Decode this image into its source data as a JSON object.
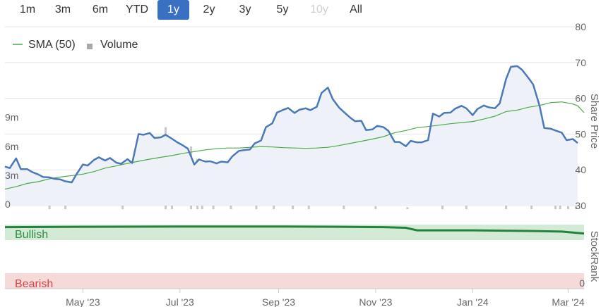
{
  "range_buttons": [
    {
      "label": "1m",
      "state": "normal"
    },
    {
      "label": "3m",
      "state": "normal"
    },
    {
      "label": "6m",
      "state": "normal"
    },
    {
      "label": "YTD",
      "state": "normal"
    },
    {
      "label": "1y",
      "state": "active"
    },
    {
      "label": "2y",
      "state": "normal"
    },
    {
      "label": "3y",
      "state": "normal"
    },
    {
      "label": "5y",
      "state": "normal"
    },
    {
      "label": "10y",
      "state": "disabled"
    },
    {
      "label": "All",
      "state": "normal"
    }
  ],
  "colors": {
    "accent": "#3a70c1",
    "price_line": "#4a78b8",
    "price_fill": "#eef2f8",
    "sma_line": "#4aaa4a",
    "volume_bar": "#c8c8c8",
    "stockrank_line": "#23833d",
    "bullish_band": "#d3ead6",
    "bullish_text": "#2e8b3f",
    "bearish_band": "#f6dada",
    "bearish_text": "#d34545",
    "grid": "#e6e6e6",
    "axis_text": "#666666"
  },
  "legend": [
    {
      "label": "SMA (50)",
      "marker": "line",
      "color": "#4aaa4a"
    },
    {
      "label": "Volume",
      "marker": "square",
      "color": "#a8a8a8"
    }
  ],
  "chart_data": {
    "type": "line",
    "x_labels": [
      "May '23",
      "Jul '23",
      "Sep '23",
      "Nov '23",
      "Jan '24",
      "Mar '24"
    ],
    "x": [
      "2023-03-13",
      "2023-03-16",
      "2023-03-20",
      "2023-03-23",
      "2023-03-27",
      "2023-03-30",
      "2023-04-03",
      "2023-04-06",
      "2023-04-10",
      "2023-04-13",
      "2023-04-17",
      "2023-04-20",
      "2023-04-24",
      "2023-04-27",
      "2023-05-01",
      "2023-05-04",
      "2023-05-08",
      "2023-05-11",
      "2023-05-15",
      "2023-05-18",
      "2023-05-22",
      "2023-05-25",
      "2023-05-29",
      "2023-06-01",
      "2023-06-05",
      "2023-06-08",
      "2023-06-12",
      "2023-06-15",
      "2023-06-19",
      "2023-06-22",
      "2023-06-26",
      "2023-06-29",
      "2023-07-03",
      "2023-07-06",
      "2023-07-10",
      "2023-07-13",
      "2023-07-17",
      "2023-07-20",
      "2023-07-24",
      "2023-07-27",
      "2023-07-31",
      "2023-08-03",
      "2023-08-07",
      "2023-08-10",
      "2023-08-14",
      "2023-08-17",
      "2023-08-21",
      "2023-08-24",
      "2023-08-28",
      "2023-08-31",
      "2023-09-04",
      "2023-09-07",
      "2023-09-11",
      "2023-09-14",
      "2023-09-18",
      "2023-09-21",
      "2023-09-25",
      "2023-09-28",
      "2023-10-02",
      "2023-10-05",
      "2023-10-09",
      "2023-10-12",
      "2023-10-16",
      "2023-10-19",
      "2023-10-23",
      "2023-10-26",
      "2023-10-30",
      "2023-11-02",
      "2023-11-06",
      "2023-11-09",
      "2023-11-13",
      "2023-11-16",
      "2023-11-20",
      "2023-11-23",
      "2023-11-27",
      "2023-11-30",
      "2023-12-04",
      "2023-12-07",
      "2023-12-11",
      "2023-12-14",
      "2023-12-18",
      "2023-12-21",
      "2023-12-25",
      "2023-12-28",
      "2024-01-01",
      "2024-01-04",
      "2024-01-08",
      "2024-01-11",
      "2024-01-15",
      "2024-01-18",
      "2024-01-22",
      "2024-01-25",
      "2024-01-29",
      "2024-02-01",
      "2024-02-05",
      "2024-02-08",
      "2024-02-12",
      "2024-02-15",
      "2024-02-19",
      "2024-02-22",
      "2024-02-26",
      "2024-02-29",
      "2024-03-04",
      "2024-03-07"
    ],
    "series": [
      {
        "name": "",
        "values": [
          40.9,
          40.5,
          43.2,
          40.2,
          40.2,
          39.4,
          38.7,
          38.0,
          37.9,
          37.5,
          37.3,
          36.8,
          36.5,
          38.8,
          41.5,
          41.2,
          42.8,
          43.5,
          42.6,
          43.3,
          42.0,
          41.7,
          43.0,
          41.9,
          50.0,
          49.8,
          50.3,
          48.9,
          49.1,
          49.8,
          48.7,
          47.8,
          46.8,
          45.9,
          41.5,
          42.9,
          42.3,
          42.4,
          41.8,
          42.3,
          42.1,
          43.8,
          45.3,
          45.5,
          45.7,
          47.4,
          48.2,
          51.9,
          53.0,
          56.0,
          56.8,
          57.3,
          55.9,
          56.8,
          57.2,
          56.7,
          57.6,
          61.5,
          63.0,
          59.8,
          57.4,
          56.2,
          54.6,
          53.6,
          53.7,
          51.1,
          51.3,
          52.3,
          51.9,
          50.9,
          47.8,
          47.8,
          46.6,
          48.1,
          47.7,
          47.7,
          48.3,
          55.7,
          54.9,
          55.9,
          56.0,
          57.1,
          57.9,
          57.2,
          55.3,
          57.0,
          58.0,
          57.5,
          57.2,
          58.6,
          65.4,
          68.8,
          69.0,
          68.0,
          65.7,
          63.9,
          58.0,
          51.7,
          51.5,
          51.0,
          50.4,
          48.3,
          48.6,
          47.5
        ]
      },
      {
        "name": "SMA (50)",
        "values": [
          34.6,
          35.3,
          36.2,
          36.7,
          37.5,
          38.0,
          38.4,
          38.8,
          39.5,
          40.5,
          41.1,
          41.8,
          42.4,
          43.0,
          43.5,
          44.0,
          44.6,
          45.1,
          45.6,
          45.9,
          46.1,
          46.1,
          46.3,
          46.5,
          46.4,
          46.2,
          46.1,
          46.0,
          46.1,
          46.3,
          46.8,
          47.4,
          48.0,
          48.6,
          49.3,
          50.4,
          51.0,
          51.8,
          52.1,
          52.5,
          52.9,
          53.2,
          53.5,
          54.2,
          55.0,
          56.3,
          56.7,
          57.5,
          58.0,
          58.8,
          59.0,
          58.4,
          57.9,
          56.0
        ],
        "x": [
          "2023-03-13",
          "2023-03-20",
          "2023-03-27",
          "2023-04-03",
          "2023-04-10",
          "2023-04-17",
          "2023-04-24",
          "2023-05-01",
          "2023-05-08",
          "2023-05-15",
          "2023-05-22",
          "2023-05-29",
          "2023-06-05",
          "2023-06-12",
          "2023-06-19",
          "2023-06-26",
          "2023-07-03",
          "2023-07-10",
          "2023-07-17",
          "2023-07-24",
          "2023-07-31",
          "2023-08-07",
          "2023-08-14",
          "2023-08-21",
          "2023-08-28",
          "2023-09-04",
          "2023-09-11",
          "2023-09-18",
          "2023-09-25",
          "2023-10-02",
          "2023-10-09",
          "2023-10-16",
          "2023-10-23",
          "2023-10-30",
          "2023-11-06",
          "2023-11-13",
          "2023-11-20",
          "2023-11-27",
          "2023-12-04",
          "2023-12-11",
          "2023-12-18",
          "2023-12-25",
          "2024-01-01",
          "2024-01-08",
          "2024-01-15",
          "2024-01-22",
          "2024-01-29",
          "2024-02-05",
          "2024-02-12",
          "2024-02-19",
          "2024-02-26",
          "2024-03-04",
          "2024-03-07",
          "2024-03-11"
        ]
      },
      {
        "name": "Volume",
        "x": [
          "2023-04-10",
          "2023-04-20",
          "2023-05-26",
          "2023-06-22",
          "2023-06-26",
          "2023-07-08",
          "2023-07-12",
          "2023-07-15",
          "2023-07-22",
          "2023-08-02",
          "2023-08-18",
          "2023-08-29",
          "2023-09-10",
          "2023-09-20",
          "2023-10-12",
          "2023-11-01",
          "2023-11-21",
          "2023-12-13",
          "2023-12-28",
          "2024-01-22",
          "2024-02-07",
          "2024-02-22",
          "2024-02-25",
          "2024-03-01",
          "2024-03-06"
        ],
        "values": [
          0.5,
          1.5,
          1.0,
          8.5,
          0.5,
          6.5,
          5.2,
          0.7,
          0.5,
          0.5,
          0.6,
          0.4,
          1.1,
          0.6,
          0.5,
          0.3,
          0.2,
          1.8,
          0.4,
          0.4,
          0.4,
          1.0,
          0.7,
          0.3,
          0.6
        ]
      },
      {
        "name": "StockRank",
        "x": [
          "2023-03-13",
          "2023-05-01",
          "2023-07-03",
          "2023-09-04",
          "2023-10-09",
          "2023-11-06",
          "2023-11-20",
          "2023-11-27",
          "2024-01-01",
          "2024-02-05",
          "2024-02-26",
          "2024-03-11"
        ],
        "values": [
          96,
          96.5,
          97,
          97,
          96.5,
          96,
          95,
          91,
          91,
          90,
          89,
          86
        ]
      }
    ],
    "ylabel": "Share Price",
    "ylim": [
      30,
      80
    ],
    "yticks": [
      "30",
      "40",
      "50",
      "60",
      "70",
      "80"
    ],
    "volume_ticks": [
      "0",
      "3m",
      "6m",
      "9m"
    ],
    "stockrank_label": "StockRank",
    "stockrank_ticks": [
      "0"
    ],
    "bands": [
      {
        "label": "Bullish"
      },
      {
        "label": "Bearish"
      }
    ],
    "grid": true,
    "legend_position": "top-left"
  }
}
